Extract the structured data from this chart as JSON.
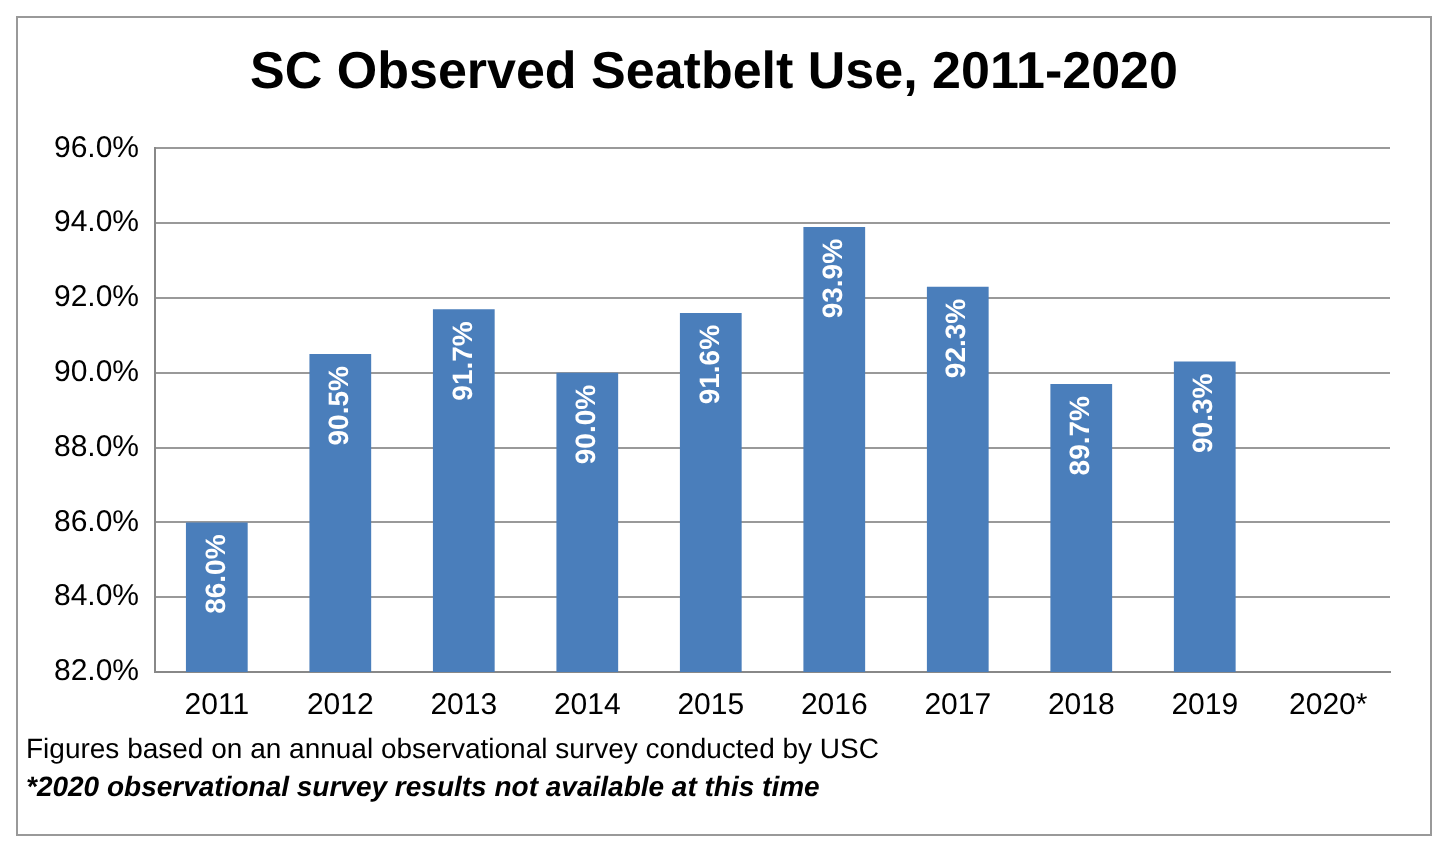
{
  "chart_data": {
    "type": "bar",
    "title": "SC Observed Seatbelt Use, 2011-2020",
    "categories": [
      "2011",
      "2012",
      "2013",
      "2014",
      "2015",
      "2016",
      "2017",
      "2018",
      "2019",
      "2020*"
    ],
    "values": [
      86.0,
      90.5,
      91.7,
      90.0,
      91.6,
      93.9,
      92.3,
      89.7,
      90.3,
      null
    ],
    "value_labels": [
      "86.0%",
      "90.5%",
      "91.7%",
      "90.0%",
      "91.6%",
      "93.9%",
      "92.3%",
      "89.7%",
      "90.3%",
      null
    ],
    "color": "#4a7ebb",
    "ylim": [
      82,
      96
    ],
    "yticks": [
      {
        "value": 82,
        "label": "82.0%"
      },
      {
        "value": 84,
        "label": "84.0%"
      },
      {
        "value": 86,
        "label": "86.0%"
      },
      {
        "value": 88,
        "label": "88.0%"
      },
      {
        "value": 90,
        "label": "90.0%"
      },
      {
        "value": 92,
        "label": "92.0%"
      },
      {
        "value": 94,
        "label": "94.0%"
      },
      {
        "value": 96,
        "label": "96.0%"
      }
    ],
    "grid": "y",
    "legend": false,
    "annotations": [
      "Figures based on an annual observational survey conducted by USC",
      "*2020 observational survey results not available at this time"
    ]
  }
}
